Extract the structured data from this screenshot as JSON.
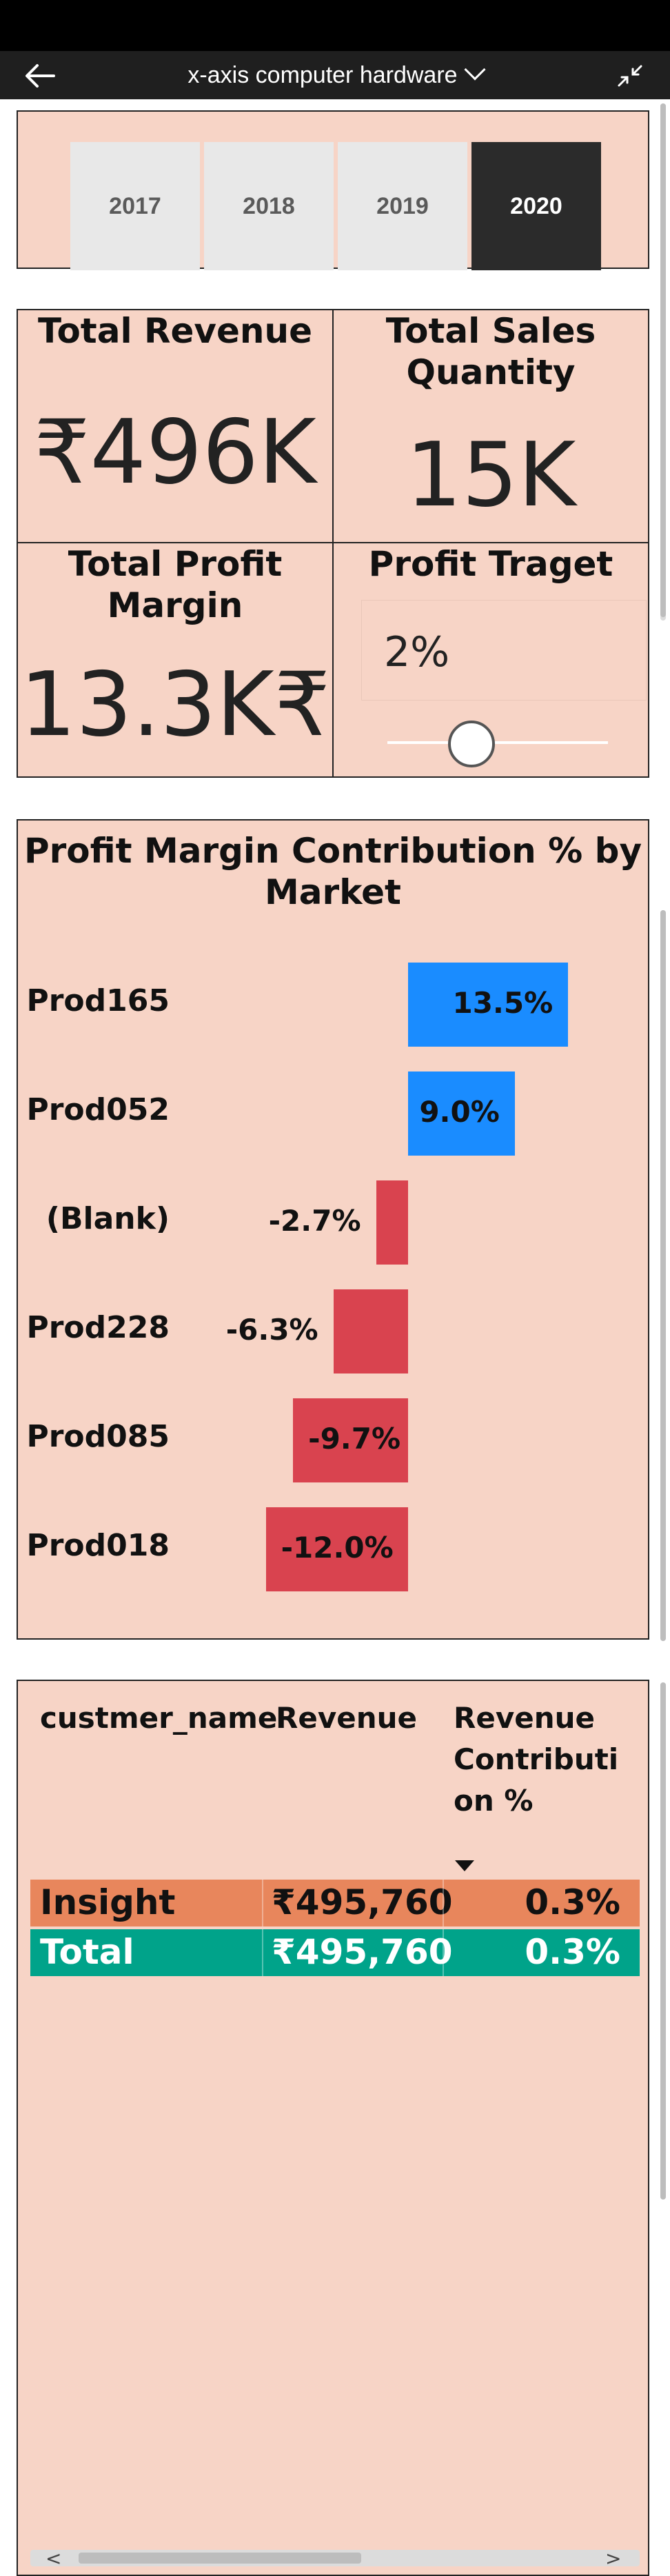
{
  "app": {
    "title": "x-axis computer hardware"
  },
  "year_slicer": {
    "years": [
      "2017",
      "2018",
      "2019",
      "2020"
    ],
    "selected": "2020"
  },
  "kpis": {
    "total_revenue": {
      "label": "Total Revenue",
      "value": "₹496K"
    },
    "total_sales_quantity": {
      "label_line1": "Total Sales",
      "label_line2": "Quantity",
      "value": "15K"
    },
    "total_profit_margin": {
      "label_line1": "Total Profit",
      "label_line2": "Margin",
      "value": "13.3K₹"
    },
    "profit_target": {
      "label": "Profit Traget",
      "value": "2%",
      "slider_fraction": 0.35
    }
  },
  "chart_data": {
    "type": "bar",
    "orientation": "horizontal",
    "title_line1": "Profit Margin Contribution % by",
    "title_line2": "Market",
    "categories": [
      "Prod165",
      "Prod052",
      "(Blank)",
      "Prod228",
      "Prod085",
      "Prod018"
    ],
    "values": [
      13.5,
      9.0,
      -2.7,
      -6.3,
      -9.7,
      -12.0
    ],
    "value_labels": [
      "13.5%",
      "9.0%",
      "-2.7%",
      "-6.3%",
      "-9.7%",
      "-12.0%"
    ],
    "colors": {
      "positive": "#1a8cff",
      "negative": "#d9434f"
    }
  },
  "table": {
    "headers": {
      "name": "custmer_name",
      "revenue": "Revenue",
      "contrib_line1": "Revenue",
      "contrib_line2": "Contributi",
      "contrib_line3": "on %"
    },
    "rows": [
      {
        "name": "Insight",
        "revenue": "₹495,760",
        "contribution": "0.3%"
      }
    ],
    "total": {
      "name": "Total",
      "revenue": "₹495,760",
      "contribution": "0.3%"
    },
    "colors": {
      "row": "#e8865c",
      "total": "#00a38a"
    }
  },
  "scrollbar": {
    "left_arrow": "<",
    "right_arrow": ">"
  }
}
